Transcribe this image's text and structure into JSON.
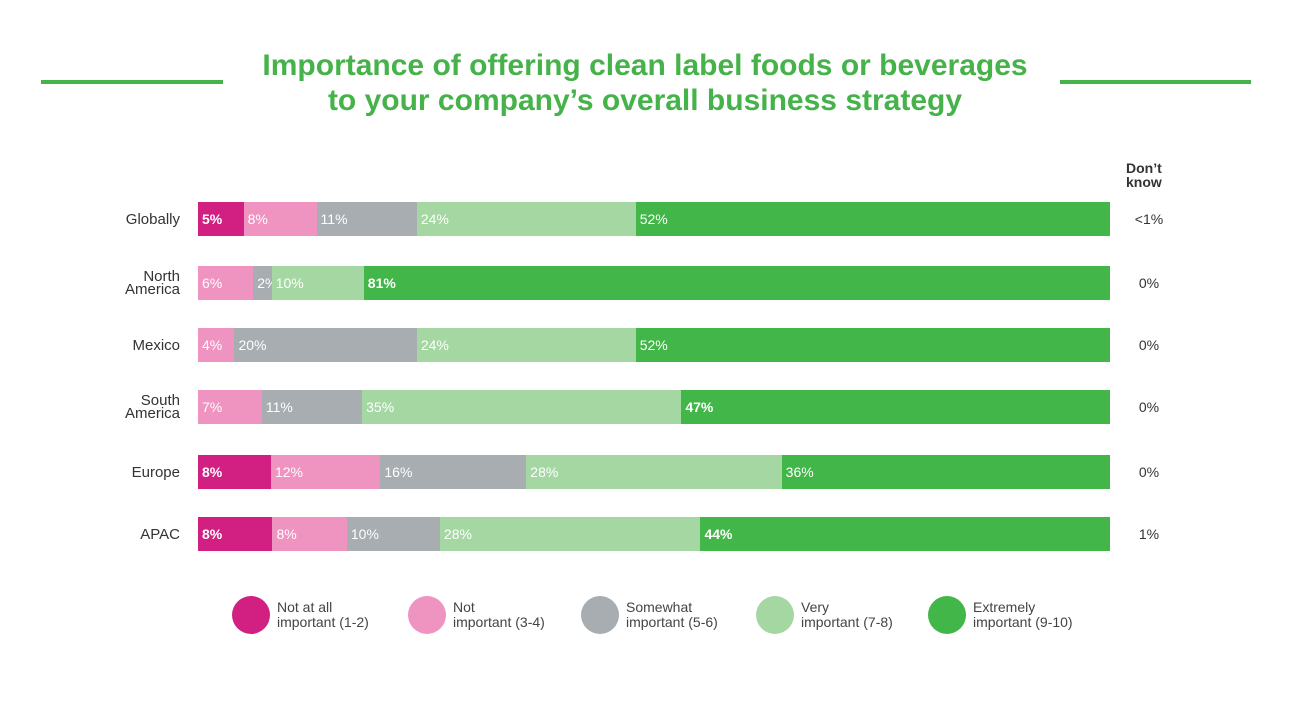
{
  "title": {
    "line1": "Importance of offering clean label foods or beverages",
    "line2": "to your company’s overall business strategy"
  },
  "chart_data": {
    "type": "bar",
    "orientation": "horizontal",
    "stacked": true,
    "title": "Importance of offering clean label foods or beverages to your company’s overall business strategy",
    "categories": [
      "Globally",
      "North America",
      "Mexico",
      "South America",
      "Europe",
      "APAC"
    ],
    "category_lines": [
      [
        "Globally"
      ],
      [
        "North",
        "America"
      ],
      [
        "Mexico"
      ],
      [
        "South",
        "America"
      ],
      [
        "Europe"
      ],
      [
        "APAC"
      ]
    ],
    "series": [
      {
        "name": "Not at all important (1-2)",
        "name_lines": [
          "Not at all",
          "important (1-2)"
        ],
        "color": "#d21f82",
        "values": [
          5,
          0,
          0,
          0,
          8,
          8
        ]
      },
      {
        "name": "Not important (3-4)",
        "name_lines": [
          "Not",
          "important (3-4)"
        ],
        "color": "#ef93c0",
        "values": [
          8,
          6,
          4,
          7,
          12,
          8
        ]
      },
      {
        "name": "Somewhat important (5-6)",
        "name_lines": [
          "Somewhat",
          "important (5-6)"
        ],
        "color": "#a7adb0",
        "values": [
          11,
          2,
          20,
          11,
          16,
          10
        ]
      },
      {
        "name": "Very important (7-8)",
        "name_lines": [
          "Very",
          "important (7-8)"
        ],
        "color": "#a5d7a2",
        "values": [
          24,
          10,
          24,
          35,
          28,
          28
        ]
      },
      {
        "name": "Extremely important (9-10)",
        "name_lines": [
          "Extremely",
          "important (9-10)"
        ],
        "color": "#42b649",
        "values": [
          52,
          81,
          52,
          47,
          36,
          44
        ]
      }
    ],
    "value_labels": [
      [
        "5%",
        "8%",
        "11%",
        "24%",
        "52%"
      ],
      [
        "",
        "6%",
        "2%",
        "10%",
        "81%"
      ],
      [
        "",
        "4%",
        "20%",
        "24%",
        "52%"
      ],
      [
        "",
        "7%",
        "11%",
        "35%",
        "47%"
      ],
      [
        "8%",
        "12%",
        "16%",
        "28%",
        "36%"
      ],
      [
        "8%",
        "8%",
        "10%",
        "28%",
        "44%"
      ]
    ],
    "bold_labels": [
      [
        true,
        false,
        false,
        false,
        false
      ],
      [
        false,
        false,
        false,
        false,
        true
      ],
      [
        false,
        false,
        false,
        false,
        false
      ],
      [
        false,
        false,
        false,
        false,
        true
      ],
      [
        true,
        false,
        false,
        false,
        false
      ],
      [
        true,
        false,
        false,
        false,
        true
      ]
    ],
    "dont_know_header": [
      "Don’t",
      "know"
    ],
    "dont_know": [
      "<1%",
      "0%",
      "0%",
      "0%",
      "0%",
      "1%"
    ],
    "legend_position": "bottom",
    "grid": false
  }
}
